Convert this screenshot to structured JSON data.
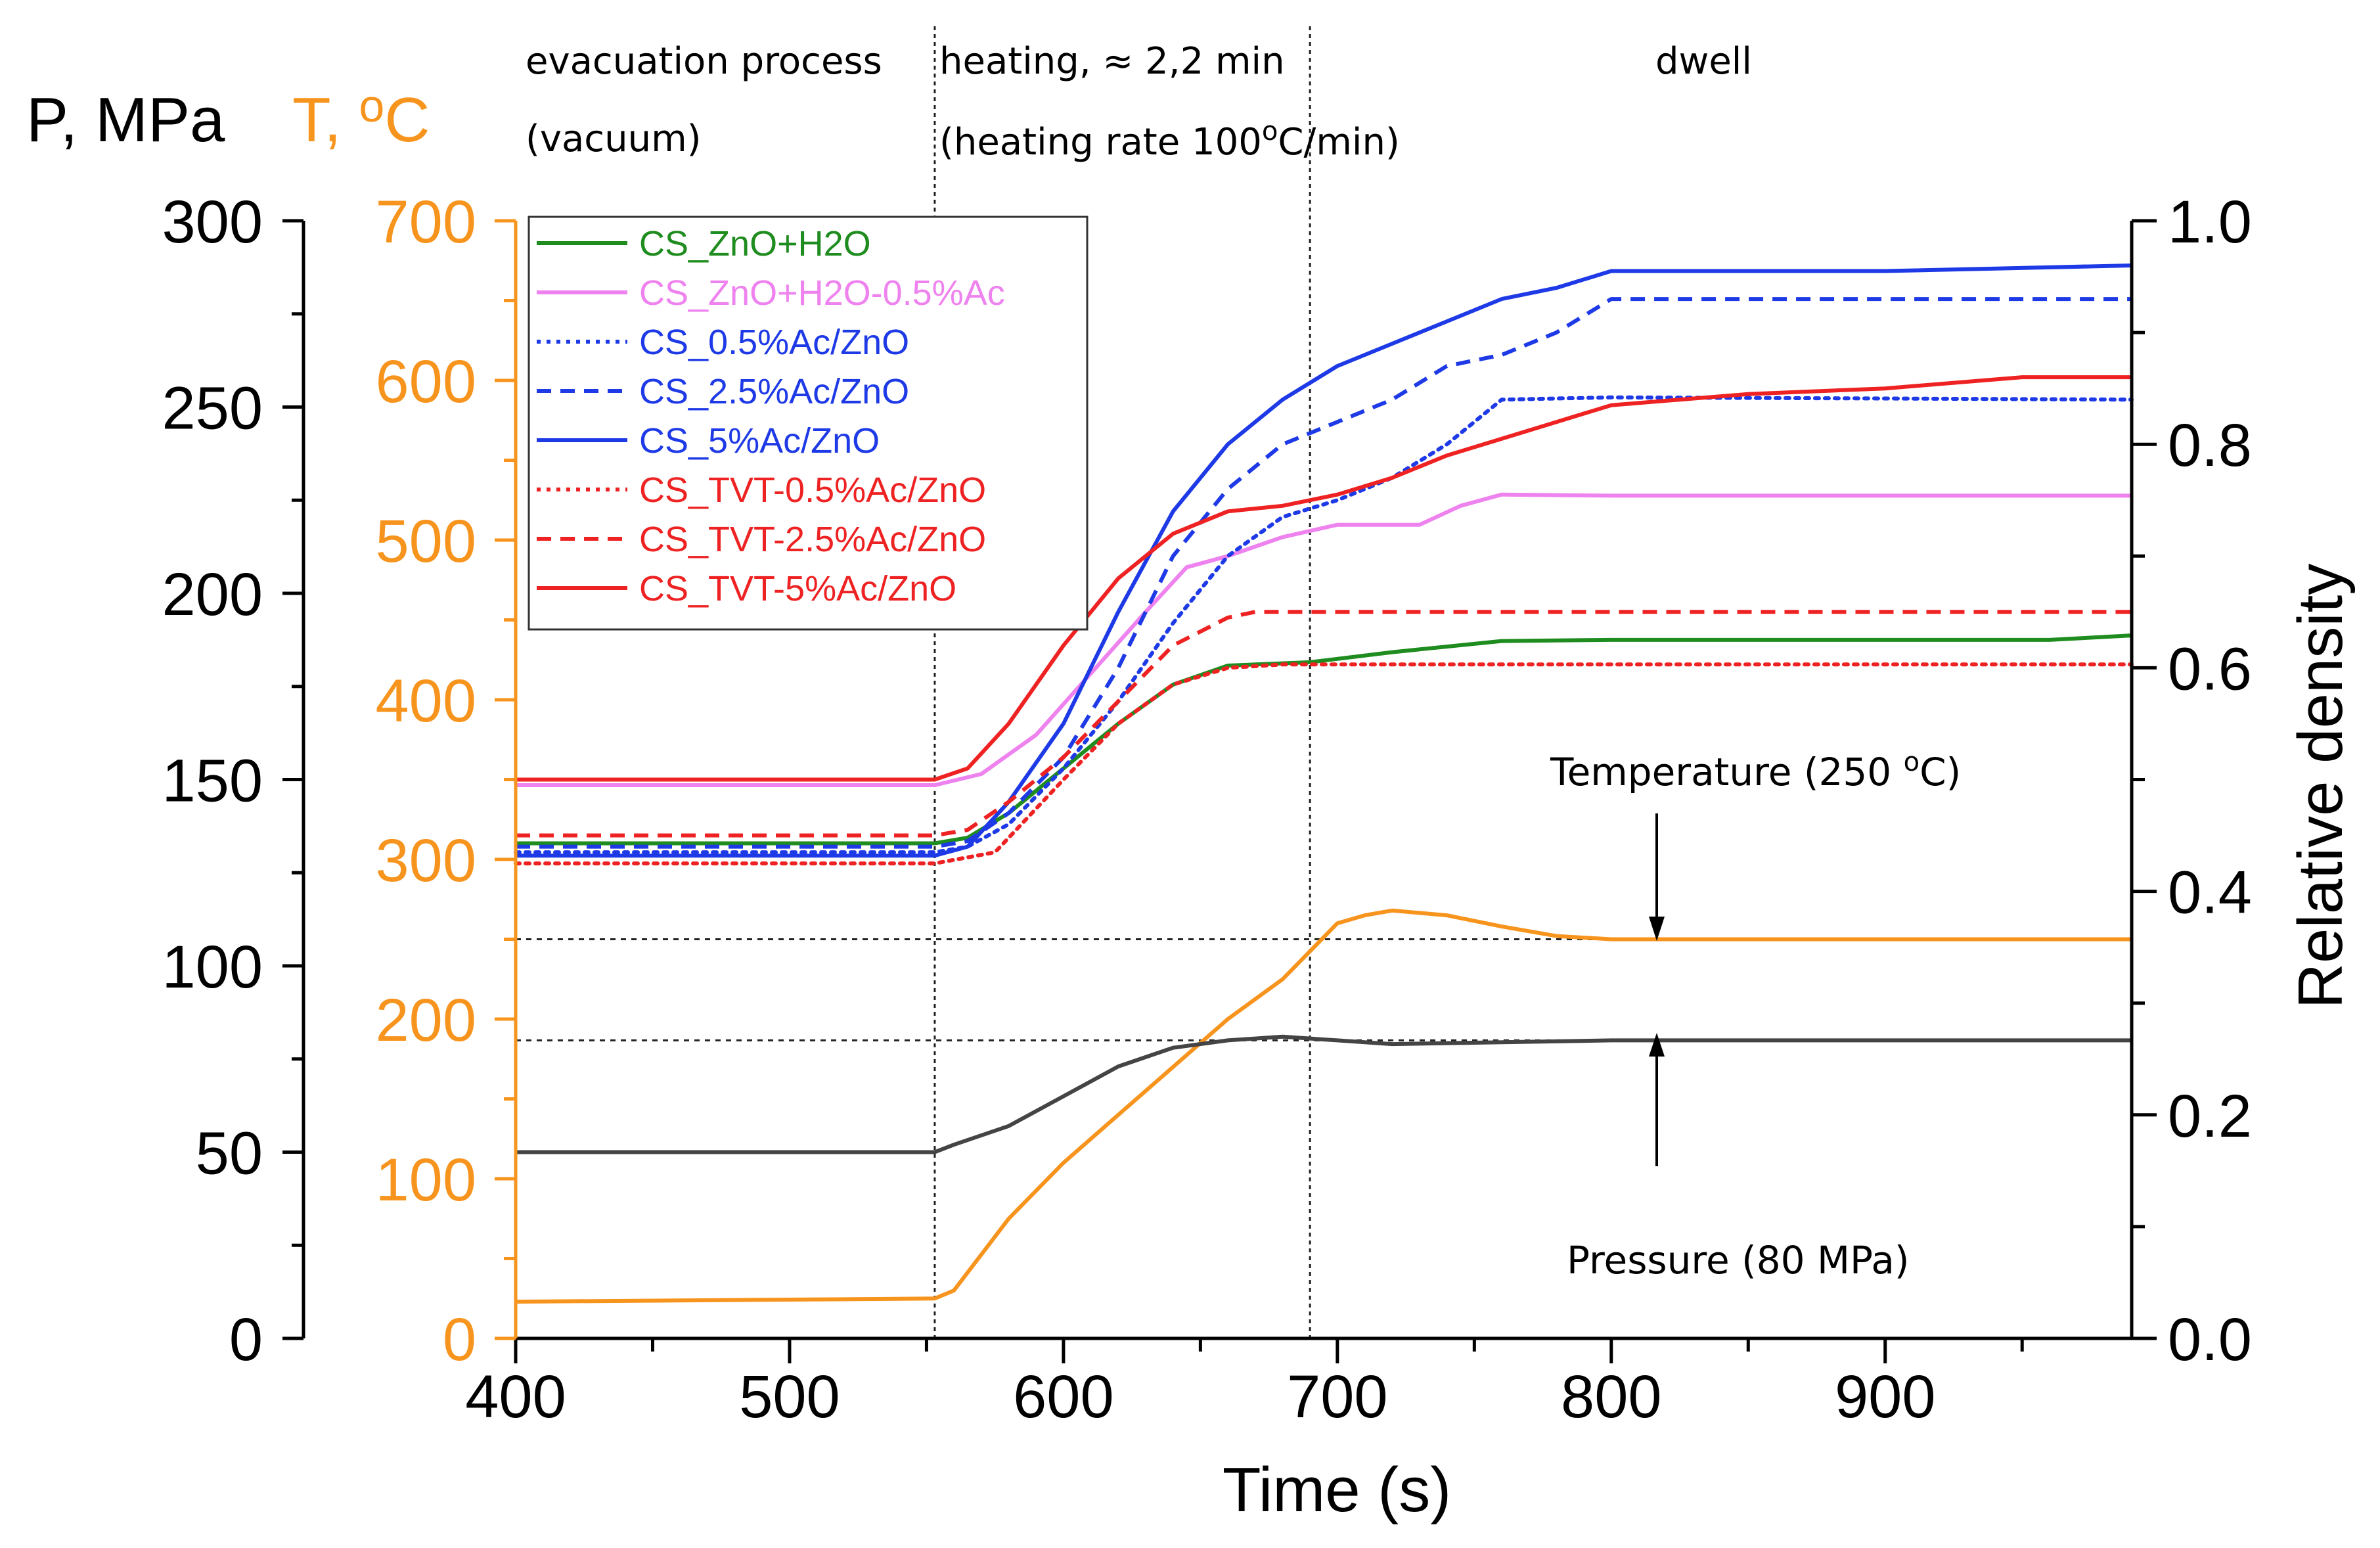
{
  "chart_data": {
    "type": "line",
    "xlabel": "Time (s)",
    "x_ticks": [
      "400",
      "500",
      "600",
      "700",
      "800",
      "900"
    ],
    "xlim": [
      400,
      990
    ],
    "axes": {
      "pressure": {
        "label": "P, MPa",
        "color": "#000000",
        "ticks": [
          "0",
          "50",
          "100",
          "150",
          "200",
          "250",
          "300"
        ],
        "range": [
          0,
          300
        ]
      },
      "temperature": {
        "label": "T, ",
        "unit_sup": "o",
        "unit": "C",
        "color": "#f7941d",
        "ticks": [
          "0",
          "100",
          "200",
          "300",
          "400",
          "500",
          "600",
          "700"
        ],
        "range": [
          0,
          700
        ]
      },
      "density": {
        "label": "Relative density",
        "color": "#000000",
        "ticks": [
          "0.0",
          "0.2",
          "0.4",
          "0.6",
          "0.8",
          "1.0"
        ],
        "range": [
          0,
          1.0
        ]
      }
    },
    "phases": {
      "evacuation": {
        "line1": "evacuation process",
        "line2": "(vacuum)"
      },
      "heating": {
        "line1": "heating, ≈ 2,2 min",
        "line2_pre": "(heating rate 100",
        "line2_sup": "o",
        "line2_post": "C/min)"
      },
      "dwell": {
        "line1": "dwell"
      }
    },
    "phase_boundaries": [
      553,
      690
    ],
    "annotations": {
      "temperature": {
        "pre": "Temperature (250 ",
        "sup": "o",
        "post": "C)"
      },
      "pressure": "Pressure (80 MPa)"
    },
    "reference_levels": {
      "temperature_setpoint": 250,
      "pressure_setpoint": 80
    },
    "series": [
      {
        "name": "CS_ZnO+H2O",
        "color": "#1f8c1f",
        "dash": "solid",
        "axis": "density",
        "x": [
          400,
          553,
          565,
          580,
          600,
          620,
          640,
          660,
          690,
          720,
          760,
          800,
          900,
          960,
          990
        ],
        "y": [
          0.443,
          0.443,
          0.448,
          0.47,
          0.51,
          0.55,
          0.585,
          0.602,
          0.605,
          0.614,
          0.624,
          0.625,
          0.625,
          0.625,
          0.629
        ]
      },
      {
        "name": "CS_ZnO+H2O-0.5%Ac",
        "color": "#ee82ee",
        "dash": "solid",
        "axis": "density",
        "x": [
          400,
          553,
          570,
          590,
          610,
          630,
          645,
          660,
          680,
          700,
          730,
          745,
          760,
          800,
          900,
          990
        ],
        "y": [
          0.495,
          0.495,
          0.505,
          0.54,
          0.595,
          0.65,
          0.69,
          0.7,
          0.717,
          0.728,
          0.728,
          0.745,
          0.755,
          0.754,
          0.754,
          0.754
        ]
      },
      {
        "name": "CS_0.5%Ac/ZnO",
        "color": "#1e3ae6",
        "dash": "dotted",
        "axis": "density",
        "x": [
          400,
          553,
          565,
          580,
          600,
          620,
          640,
          660,
          680,
          700,
          720,
          740,
          760,
          800,
          900,
          990
        ],
        "y": [
          0.435,
          0.435,
          0.44,
          0.46,
          0.51,
          0.57,
          0.64,
          0.7,
          0.735,
          0.75,
          0.77,
          0.8,
          0.84,
          0.842,
          0.841,
          0.84
        ]
      },
      {
        "name": "CS_2.5%Ac/ZnO",
        "color": "#1e3ae6",
        "dash": "dashed",
        "axis": "density",
        "x": [
          400,
          553,
          565,
          580,
          600,
          620,
          640,
          660,
          680,
          700,
          720,
          740,
          760,
          780,
          800,
          900,
          990
        ],
        "y": [
          0.44,
          0.44,
          0.445,
          0.47,
          0.52,
          0.6,
          0.7,
          0.76,
          0.8,
          0.82,
          0.84,
          0.87,
          0.88,
          0.9,
          0.93,
          0.93,
          0.93
        ]
      },
      {
        "name": "CS_5%Ac/ZnO",
        "color": "#1e3ae6",
        "dash": "solid",
        "axis": "density",
        "x": [
          400,
          553,
          565,
          580,
          600,
          620,
          640,
          660,
          680,
          700,
          720,
          740,
          760,
          780,
          800,
          900,
          990
        ],
        "y": [
          0.432,
          0.432,
          0.44,
          0.48,
          0.55,
          0.65,
          0.74,
          0.8,
          0.84,
          0.87,
          0.89,
          0.91,
          0.93,
          0.94,
          0.955,
          0.955,
          0.96
        ]
      },
      {
        "name": "CS_TVT-0.5%Ac/ZnO",
        "color": "#ee2222",
        "dash": "dotted",
        "axis": "density",
        "x": [
          400,
          553,
          575,
          600,
          620,
          640,
          660,
          680,
          700,
          800,
          900,
          990
        ],
        "y": [
          0.425,
          0.425,
          0.435,
          0.5,
          0.55,
          0.585,
          0.6,
          0.603,
          0.603,
          0.603,
          0.603,
          0.603
        ]
      },
      {
        "name": "CS_TVT-2.5%Ac/ZnO",
        "color": "#ee2222",
        "dash": "dashed",
        "axis": "density",
        "x": [
          400,
          553,
          565,
          580,
          600,
          620,
          640,
          660,
          670,
          700,
          800,
          900,
          990
        ],
        "y": [
          0.45,
          0.45,
          0.455,
          0.48,
          0.52,
          0.57,
          0.62,
          0.645,
          0.65,
          0.65,
          0.65,
          0.65,
          0.65
        ]
      },
      {
        "name": "CS_TVT-5%Ac/ZnO",
        "color": "#ee2222",
        "dash": "solid",
        "axis": "density",
        "x": [
          400,
          553,
          565,
          580,
          600,
          620,
          640,
          660,
          680,
          700,
          720,
          740,
          760,
          780,
          800,
          850,
          900,
          950,
          990
        ],
        "y": [
          0.5,
          0.5,
          0.51,
          0.55,
          0.62,
          0.68,
          0.72,
          0.74,
          0.745,
          0.755,
          0.77,
          0.79,
          0.805,
          0.82,
          0.835,
          0.845,
          0.85,
          0.86,
          0.86
        ]
      },
      {
        "name": "Temperature",
        "color": "#f7941d",
        "dash": "solid",
        "axis": "temperature",
        "x": [
          400,
          553,
          560,
          580,
          600,
          620,
          640,
          660,
          680,
          700,
          710,
          720,
          740,
          760,
          780,
          800,
          990
        ],
        "y": [
          23,
          25,
          30,
          75,
          110,
          140,
          170,
          200,
          225,
          260,
          265,
          268,
          265,
          258,
          252,
          250,
          250
        ]
      },
      {
        "name": "Pressure",
        "color": "#444444",
        "dash": "solid",
        "axis": "pressure",
        "x": [
          400,
          553,
          560,
          580,
          600,
          620,
          640,
          660,
          680,
          700,
          720,
          800,
          900,
          990
        ],
        "y": [
          50,
          50,
          52,
          57,
          65,
          73,
          78,
          80,
          81,
          80,
          79,
          80,
          80,
          80
        ]
      }
    ]
  }
}
